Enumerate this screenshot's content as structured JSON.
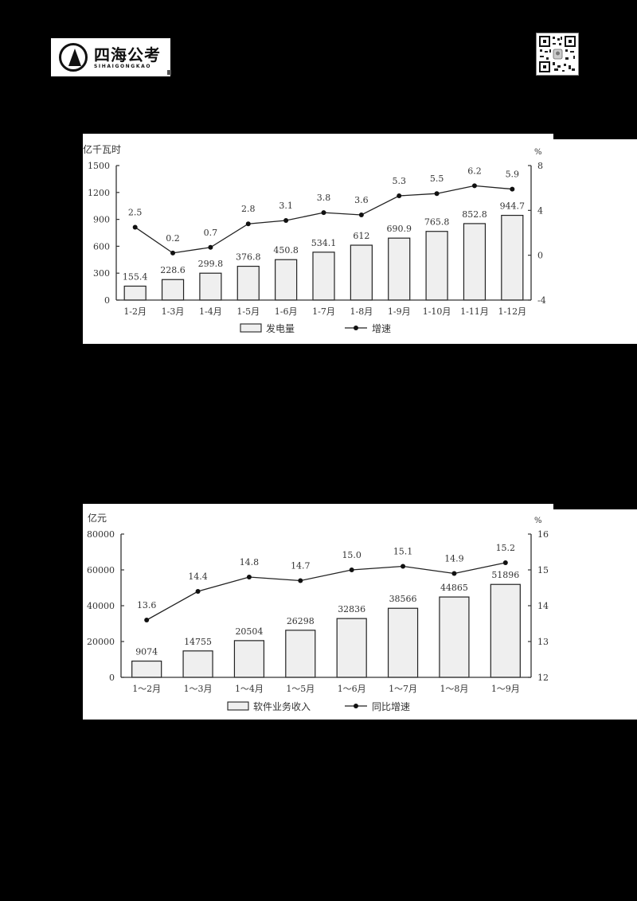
{
  "header": {
    "logo_cn": "四海公考",
    "logo_en": "SIHAIGONGKAO",
    "qr_code": "qr-code"
  },
  "chart_data": [
    {
      "type": "bar+line",
      "title": "",
      "ylabel_left": "亿千瓦时",
      "ylabel_right": "%",
      "categories": [
        "1-2月",
        "1-3月",
        "1-4月",
        "1-5月",
        "1-6月",
        "1-7月",
        "1-8月",
        "1-9月",
        "1-10月",
        "1-11月",
        "1-12月"
      ],
      "series": [
        {
          "name": "发电量",
          "type": "bar",
          "axis": "left",
          "values": [
            155.4,
            228.6,
            299.8,
            376.8,
            450.8,
            534.1,
            612,
            690.9,
            765.8,
            852.8,
            944.7
          ],
          "labels": [
            "155.4",
            "228.6",
            "299.8",
            "376.8",
            "450.8",
            "534.1",
            "612",
            "690.9",
            "765.8",
            "852.8",
            "944.7"
          ]
        },
        {
          "name": "增速",
          "type": "line",
          "axis": "right",
          "values": [
            2.5,
            0.2,
            0.7,
            2.8,
            3.1,
            3.8,
            3.6,
            5.3,
            5.5,
            6.2,
            5.9
          ],
          "labels": [
            "2.5",
            "0.2",
            "0.7",
            "2.8",
            "3.1",
            "3.8",
            "3.6",
            "5.3",
            "5.5",
            "6.2",
            "5.9"
          ]
        }
      ],
      "ylim_left": [
        0,
        1500
      ],
      "yticks_left": [
        "0",
        "300",
        "600",
        "900",
        "1200",
        "1500"
      ],
      "ylim_right": [
        -4,
        8
      ],
      "yticks_right": [
        "-4",
        "0",
        "4",
        "8"
      ],
      "legend": [
        "发电量",
        "增速"
      ],
      "legend_position": "bottom",
      "grid": false
    },
    {
      "type": "bar+line",
      "title": "",
      "ylabel_left": "亿元",
      "ylabel_right": "%",
      "categories": [
        "1～2月",
        "1～3月",
        "1～4月",
        "1～5月",
        "1～6月",
        "1～7月",
        "1～8月",
        "1～9月"
      ],
      "series": [
        {
          "name": "软件业务收入",
          "type": "bar",
          "axis": "left",
          "values": [
            9074,
            14755,
            20504,
            26298,
            32836,
            38566,
            44865,
            51896
          ],
          "labels": [
            "9074",
            "14755",
            "20504",
            "26298",
            "32836",
            "38566",
            "44865",
            "51896"
          ]
        },
        {
          "name": "同比增速",
          "type": "line",
          "axis": "right",
          "values": [
            13.6,
            14.4,
            14.8,
            14.7,
            15.0,
            15.1,
            14.9,
            15.2
          ],
          "labels": [
            "13.6",
            "14.4",
            "14.8",
            "14.7",
            "15.0",
            "15.1",
            "14.9",
            "15.2"
          ]
        }
      ],
      "ylim_left": [
        0,
        80000
      ],
      "yticks_left": [
        "0",
        "20000",
        "40000",
        "60000",
        "80000"
      ],
      "ylim_right": [
        12,
        16
      ],
      "yticks_right": [
        "12",
        "13",
        "14",
        "15",
        "16"
      ],
      "legend": [
        "软件业务收入",
        "同比增速"
      ],
      "legend_position": "bottom",
      "grid": false
    }
  ]
}
